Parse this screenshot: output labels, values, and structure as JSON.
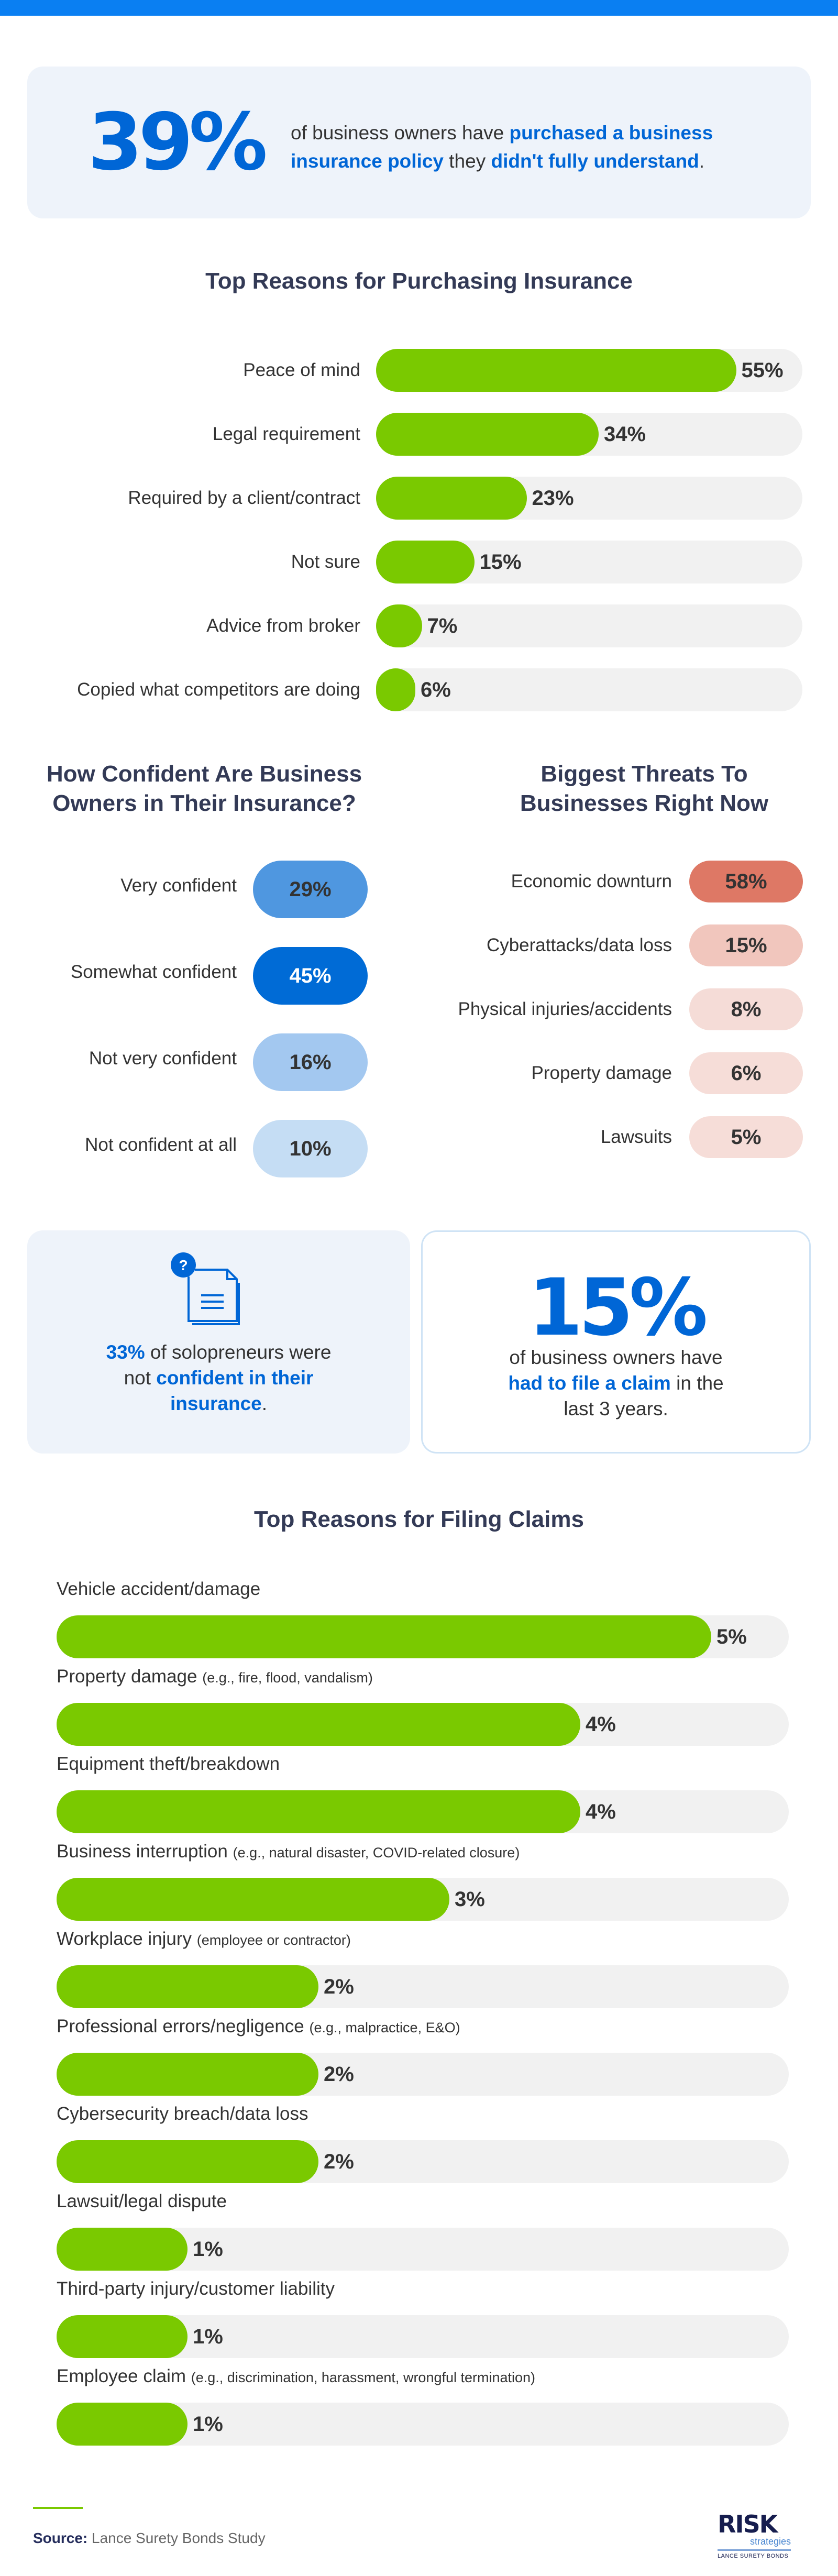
{
  "colors": {
    "accent_blue": "#0066d6",
    "bar_green": "#7ac900",
    "track": "#f1f1f1",
    "title": "#333a56",
    "top_bar": "#0a7ff2"
  },
  "stat_39": {
    "number": "39%",
    "text_1": "of business owners have ",
    "highlight_1": "purchased a business insurance policy",
    "text_2": " they ",
    "highlight_2": "didn't fully understand",
    "text_3": "."
  },
  "purchase": {
    "title": "Top Reasons for Purchasing Insurance",
    "items": [
      {
        "label": "Peace of mind",
        "value": 55,
        "display": "55%"
      },
      {
        "label": "Legal requirement",
        "value": 34,
        "display": "34%"
      },
      {
        "label": "Required by a client/contract",
        "value": 23,
        "display": "23%"
      },
      {
        "label": "Not sure",
        "value": 15,
        "display": "15%"
      },
      {
        "label": "Advice from broker",
        "value": 7,
        "display": "7%"
      },
      {
        "label": "Copied what competitors are doing",
        "value": 6,
        "display": "6%"
      }
    ]
  },
  "confidence": {
    "title_line1": "How Confident Are Business",
    "title_line2": "Owners in Their Insurance?",
    "items": [
      {
        "label": "Very confident",
        "display": "29%",
        "color": "#4f97e0",
        "text_color": "#333"
      },
      {
        "label": "Somewhat confident",
        "display": "45%",
        "color": "#006bd6",
        "text_color": "#ffffff"
      },
      {
        "label": "Not very confident",
        "display": "16%",
        "color": "#a3c8f0",
        "text_color": "#333"
      },
      {
        "label": "Not confident at all",
        "display": "10%",
        "color": "#c5ddf4",
        "text_color": "#333"
      }
    ]
  },
  "threats": {
    "title_line1": "Biggest Threats To",
    "title_line2": "Businesses Right Now",
    "items": [
      {
        "label": "Economic downturn",
        "display": "58%",
        "color": "#de7865"
      },
      {
        "label": "Cyberattacks/data loss",
        "display": "15%",
        "color": "#f1c6bd"
      },
      {
        "label": "Physical injuries/accidents",
        "display": "8%",
        "color": "#f5dcd7"
      },
      {
        "label": "Property damage",
        "display": "6%",
        "color": "#f6ddd8"
      },
      {
        "label": "Lawsuits",
        "display": "5%",
        "color": "#f6ddd8"
      }
    ]
  },
  "solo": {
    "icon": "document-question-icon",
    "highlight_1": "33%",
    "text_1": " of solopreneurs were",
    "text_2": "not ",
    "highlight_2": "confident in their",
    "highlight_3": "insurance",
    "text_3": "."
  },
  "stat_15": {
    "number": "15%",
    "line1": "of business owners have",
    "highlight": "had to file a claim",
    "line2_rest": " in the",
    "line3": "last 3 years."
  },
  "claims": {
    "title": "Top Reasons for Filing Claims",
    "items": [
      {
        "label": "Vehicle accident/damage",
        "note": "",
        "value": 5,
        "display": "5%"
      },
      {
        "label": "Property damage",
        "note": "(e.g., fire, flood, vandalism)",
        "value": 4,
        "display": "4%"
      },
      {
        "label": "Equipment theft/breakdown",
        "note": "",
        "value": 4,
        "display": "4%"
      },
      {
        "label": "Business interruption",
        "note": "(e.g., natural disaster, COVID-related closure)",
        "value": 3,
        "display": "3%"
      },
      {
        "label": "Workplace injury",
        "note": "(employee or contractor)",
        "value": 2,
        "display": "2%"
      },
      {
        "label": "Professional errors/negligence",
        "note": "(e.g., malpractice, E&O)",
        "value": 2,
        "display": "2%"
      },
      {
        "label": "Cybersecurity breach/data loss",
        "note": "",
        "value": 2,
        "display": "2%"
      },
      {
        "label": "Lawsuit/legal dispute",
        "note": "",
        "value": 1,
        "display": "1%"
      },
      {
        "label": "Third-party injury/customer liability",
        "note": "",
        "value": 1,
        "display": "1%"
      },
      {
        "label": "Employee claim",
        "note": "(e.g., discrimination, harassment, wrongful termination)",
        "value": 1,
        "display": "1%"
      }
    ]
  },
  "footer": {
    "source_label": "Source:",
    "source_text": " Lance Surety Bonds Study",
    "logo_word": "RISK",
    "logo_sub": "strategies",
    "logo_tagline": "LANCE SURETY BONDS"
  }
}
